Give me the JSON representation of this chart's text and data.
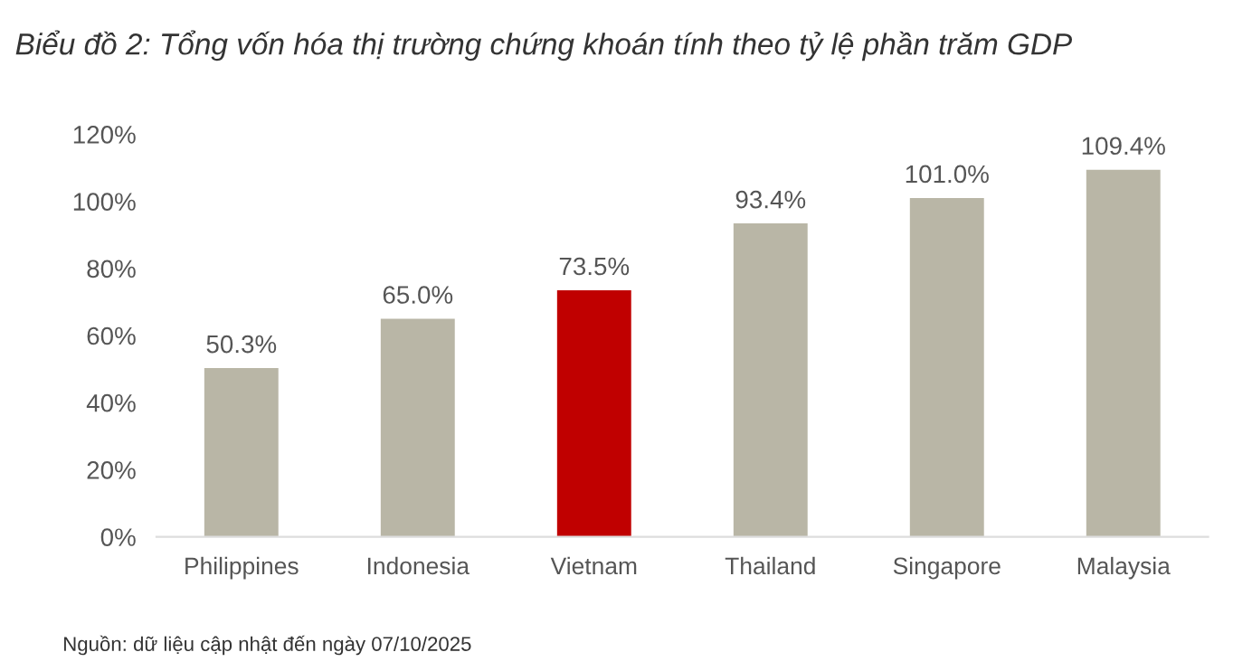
{
  "chart_data": {
    "type": "bar",
    "title": "Biểu đồ 2: Tổng vốn hóa thị trường chứng khoán tính theo tỷ lệ phần trăm GDP",
    "categories": [
      "Philippines",
      "Indonesia",
      "Vietnam",
      "Thailand",
      "Singapore",
      "Malaysia"
    ],
    "values": [
      50.3,
      65.0,
      73.5,
      93.4,
      101.0,
      109.4
    ],
    "value_labels": [
      "50.3%",
      "65.0%",
      "73.5%",
      "93.4%",
      "101.0%",
      "109.4%"
    ],
    "colors": [
      "#b9b6a6",
      "#b9b6a6",
      "#c00000",
      "#b9b6a6",
      "#b9b6a6",
      "#b9b6a6"
    ],
    "ylim": [
      0,
      120
    ],
    "yticks": [
      {
        "value": 0,
        "label": "0%"
      },
      {
        "value": 20,
        "label": "20%"
      },
      {
        "value": 40,
        "label": "40%"
      },
      {
        "value": 60,
        "label": "60%"
      },
      {
        "value": 80,
        "label": "80%"
      },
      {
        "value": 100,
        "label": "100%"
      },
      {
        "value": 120,
        "label": "120%"
      }
    ],
    "grid": false,
    "annotations": [
      "Nguồn: dữ liệu cập nhật đến ngày 07/10/2025"
    ]
  }
}
